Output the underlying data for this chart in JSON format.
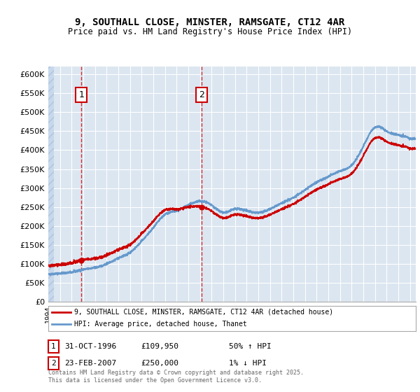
{
  "title1": "9, SOUTHALL CLOSE, MINSTER, RAMSGATE, CT12 4AR",
  "title2": "Price paid vs. HM Land Registry's House Price Index (HPI)",
  "ylabel": "",
  "ylim": [
    0,
    620000
  ],
  "yticks": [
    0,
    50000,
    100000,
    150000,
    200000,
    250000,
    300000,
    350000,
    400000,
    450000,
    500000,
    550000,
    600000
  ],
  "xlim_start": 1994.0,
  "xlim_end": 2025.5,
  "bg_color": "#dce6f1",
  "plot_bg": "#dce6f1",
  "hatch_color": "#b8c9e0",
  "grid_color": "#ffffff",
  "sale1_x": 1996.83,
  "sale1_y": 109950,
  "sale2_x": 2007.14,
  "sale2_y": 250000,
  "sale1_label": "1",
  "sale2_label": "2",
  "sale1_date": "31-OCT-1996",
  "sale1_price": "£109,950",
  "sale1_hpi": "50% ↑ HPI",
  "sale2_date": "23-FEB-2007",
  "sale2_price": "£250,000",
  "sale2_hpi": "1% ↓ HPI",
  "legend_line1": "9, SOUTHALL CLOSE, MINSTER, RAMSGATE, CT12 4AR (detached house)",
  "legend_line2": "HPI: Average price, detached house, Thanet",
  "footer": "Contains HM Land Registry data © Crown copyright and database right 2025.\nThis data is licensed under the Open Government Licence v3.0.",
  "red_color": "#cc0000",
  "blue_color": "#6699cc"
}
